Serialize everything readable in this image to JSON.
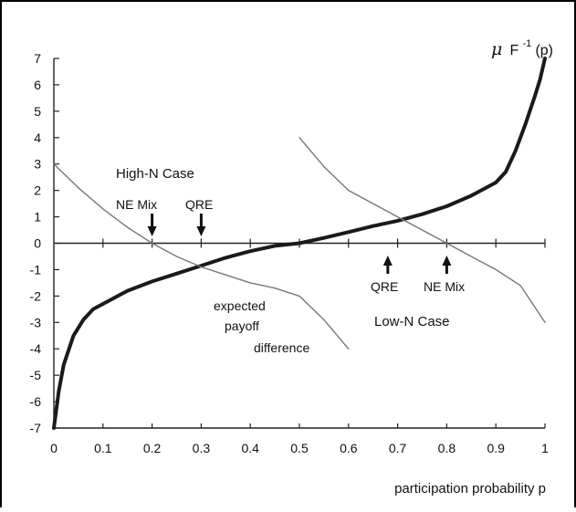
{
  "chart_data": {
    "type": "line",
    "xlabel": "participation probability p",
    "ylabel": "μ F⁻¹(p)",
    "ylabel_parts": {
      "mu": "μ",
      "f": "F",
      "sup": "-1",
      "arg": "(p)"
    },
    "xlim": [
      0,
      1
    ],
    "ylim": [
      -7,
      7
    ],
    "x_ticks": [
      0,
      0.1,
      0.2,
      0.3,
      0.4,
      0.5,
      0.6,
      0.7,
      0.8,
      0.9,
      1
    ],
    "x_tick_labels": [
      "0",
      "0.1",
      "0.2",
      "0.3",
      "0.4",
      "0.5",
      "0.6",
      "0.7",
      "0.8",
      "0.9",
      "1"
    ],
    "y_ticks": [
      -7,
      -6,
      -5,
      -4,
      -3,
      -2,
      -1,
      0,
      1,
      2,
      3,
      4,
      5,
      6,
      7
    ],
    "y_tick_labels": [
      "-7",
      "-6",
      "-5",
      "-4",
      "-3",
      "-2",
      "-1",
      "0",
      "1",
      "2",
      "3",
      "4",
      "5",
      "6",
      "7"
    ],
    "series": [
      {
        "name": "μ F⁻¹(p)",
        "style": "thick",
        "x": [
          0.0,
          0.01,
          0.02,
          0.04,
          0.06,
          0.08,
          0.1,
          0.15,
          0.2,
          0.25,
          0.3,
          0.35,
          0.4,
          0.45,
          0.5,
          0.55,
          0.6,
          0.65,
          0.7,
          0.75,
          0.8,
          0.85,
          0.9,
          0.92,
          0.94,
          0.96,
          0.98,
          0.99,
          1.0
        ],
        "y": [
          -7.0,
          -5.6,
          -4.6,
          -3.5,
          -2.9,
          -2.5,
          -2.3,
          -1.8,
          -1.45,
          -1.15,
          -0.85,
          -0.55,
          -0.3,
          -0.1,
          0.0,
          0.2,
          0.42,
          0.65,
          0.85,
          1.1,
          1.4,
          1.8,
          2.3,
          2.7,
          3.5,
          4.5,
          5.6,
          6.2,
          7.0
        ]
      },
      {
        "name": "expected payoff difference (High-N Case)",
        "style": "thin",
        "x": [
          0.0,
          0.05,
          0.1,
          0.15,
          0.2,
          0.25,
          0.3,
          0.35,
          0.4,
          0.45,
          0.5,
          0.55,
          0.6
        ],
        "y": [
          3.0,
          2.1,
          1.3,
          0.6,
          0.0,
          -0.5,
          -0.9,
          -1.2,
          -1.5,
          -1.7,
          -2.0,
          -2.9,
          -4.0
        ]
      },
      {
        "name": "expected payoff difference (Low-N Case)",
        "style": "thin",
        "x": [
          0.5,
          0.55,
          0.6,
          0.65,
          0.7,
          0.75,
          0.8,
          0.85,
          0.9,
          0.95,
          1.0
        ],
        "y": [
          4.0,
          2.9,
          2.0,
          1.5,
          1.0,
          0.5,
          0.0,
          -0.5,
          -1.0,
          -1.6,
          -3.0
        ]
      }
    ],
    "annotations": {
      "high_n_case": "High-N Case",
      "ne_mix_high": "NE Mix",
      "qre_high": "QRE",
      "expected": "expected",
      "payoff": "payoff",
      "difference": "difference",
      "qre_low": "QRE",
      "ne_mix_low": "NE Mix",
      "low_n_case": "Low-N Case"
    },
    "markers": {
      "ne_mix_high_p": 0.2,
      "qre_high_p": 0.3,
      "qre_low_p": 0.68,
      "ne_mix_low_p": 0.8
    },
    "grid": false,
    "legend": "none"
  }
}
